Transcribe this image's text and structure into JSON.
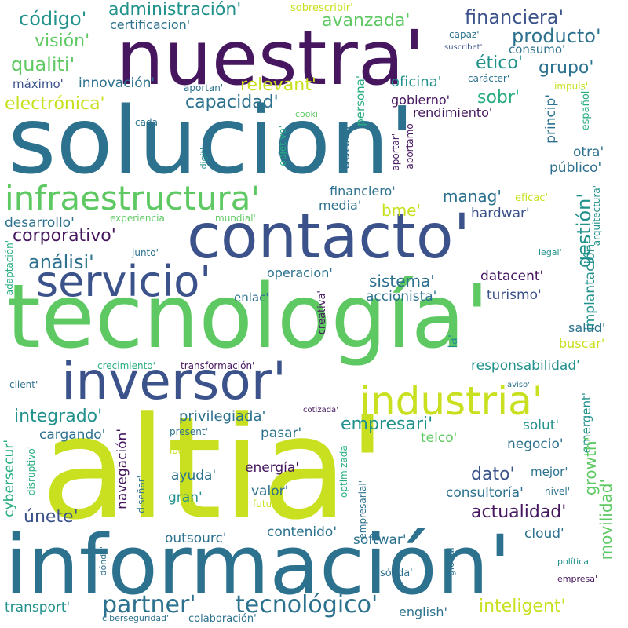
{
  "palette": {
    "purple": "#46175f",
    "indigo": "#3b528b",
    "teal": "#2c718e",
    "cyan": "#21918c",
    "green": "#27ad81",
    "lime": "#5ec962",
    "yellow": "#c8e020",
    "background": "#ffffff"
  },
  "words": {
    "altia": "altia'",
    "informacion": "información'",
    "solucion": "solucion'",
    "tecnologia": "tecnología'",
    "nuestra": "nuestra'",
    "contacto": "contacto'",
    "inversor": "inversor'",
    "servicio": "servicio'",
    "infraestructura": "infraestructura'",
    "industria": "industria'",
    "partner": "partner'",
    "tecnologico": "tecnológico'",
    "administracion": "administración'",
    "codigo": "código'",
    "vision": "visión'",
    "qualiti": "qualiti'",
    "certificacion": "certificacion'",
    "sobrescribir": "sobrescribir'",
    "avanzada": "avanzada'",
    "financiera": "financiera'",
    "producto": "producto'",
    "capaz": "capaz'",
    "suscribet": "suscribet'",
    "consumo": "consumo'",
    "grupo": "grupo'",
    "etico": "ético'",
    "maximo": "máximo'",
    "innovacion": "innovación'",
    "relevant": "relevant'",
    "aportan": "aportan'",
    "oficina": "oficina'",
    "caracter": "carácter'",
    "impuls": "impuls'",
    "electronica": "electrónica'",
    "capacidad": "capacidad'",
    "persona": "persona'",
    "gobierno": "gobierno'",
    "sobr": "sobr'",
    "princip": "princip'",
    "espanol": "español'",
    "rendimiento": "rendimiento'",
    "cada": "cada'",
    "cooki": "cooki'",
    "objetivo": "objetivo'",
    "autom": "autom'",
    "aportar": "aportar'",
    "aportamo": "aportamo'",
    "digit": "digit'",
    "otra": "otra'",
    "publico": "público'",
    "financiero": "financiero'",
    "manag": "manag'",
    "eficac": "eficac'",
    "arquitectura": "arquitectura'",
    "media": "media'",
    "bme": "bme'",
    "hardwar": "hardwar'",
    "desarrollo": "desarrollo'",
    "experiencia": "experiencia'",
    "mundial": "mundial'",
    "corporativo": "corporativo'",
    "gestion": "gestión'",
    "adaptacion": "adaptación'",
    "junto": "junto'",
    "legal": "legal'",
    "analisi": "análisi'",
    "operacion": "operacion'",
    "sistema": "sistema'",
    "datacent": "datacent'",
    "enlac": "enlac'",
    "accionista": "accionista'",
    "turismo": "turismo'",
    "implantacion": "implantación'",
    "creativa": "creativa'",
    "salud": "salud'",
    "la": "la'",
    "buscar": "buscar'",
    "crecimiento": "crecimiento'",
    "transformacion": "transformación'",
    "responsabilidad": "responsabilidad'",
    "client": "client'",
    "aviso": "aviso'",
    "emergent": "emergent'",
    "integrado": "integrado'",
    "privilegiada": "privilegiada'",
    "empresari": "empresari'",
    "cotizada": "cotizada'",
    "cargando": "cargando'",
    "navegacion": "navegación'",
    "pasar": "pasar'",
    "telco": "telco'",
    "solut": "solut'",
    "growth": "growth'",
    "cybersecur": "cybersecur'",
    "present": "present'",
    "negocio": "negocio'",
    "disruptivo": "disruptivo'",
    "logr": "logr'",
    "optimizada": "optimizada'",
    "ayuda": "ayuda'",
    "energia": "energía'",
    "dato": "dato'",
    "mejor": "mejor'",
    "disenar": "diseñar'",
    "gran": "gran'",
    "valor": "valor'",
    "consultoria": "consultoría'",
    "nivel": "nivel'",
    "movilidad": "movilidad'",
    "futuro": "futuro'",
    "empresarial": "empresarial'",
    "actualidad": "actualidad'",
    "unete": "únete'",
    "contenido": "contenido'",
    "outsourc": "outsourc'",
    "cloud": "cloud'",
    "softwar": "softwar'",
    "donde": "dónde'",
    "global": "global'",
    "politica": "política'",
    "solida": "sólida'",
    "empresa": "empresa'",
    "transport": "transport'",
    "ciberseguridad": "ciberseguridad'",
    "colaboracion": "colaboración'",
    "english": "english'",
    "inteligent": "inteligent'"
  }
}
